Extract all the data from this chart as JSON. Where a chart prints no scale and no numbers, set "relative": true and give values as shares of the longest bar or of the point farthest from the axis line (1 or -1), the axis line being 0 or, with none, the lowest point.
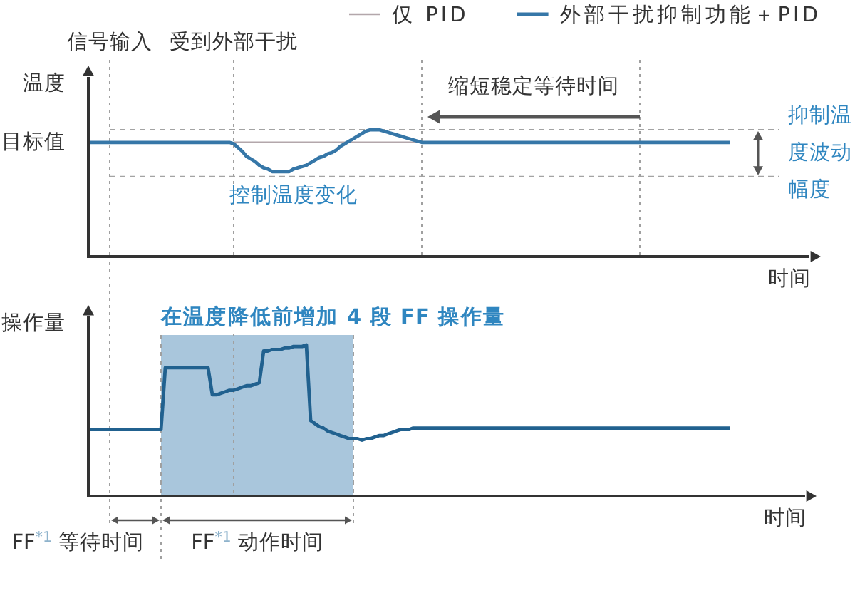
{
  "chart_data": [
    {
      "type": "line",
      "relative": true,
      "ylabel": "温度",
      "xlabel": "时间",
      "legend": "top right",
      "categories": [
        null,
        null,
        null,
        null,
        null,
        null,
        null,
        null,
        null,
        null,
        null,
        null,
        null,
        null,
        null,
        null,
        null,
        null,
        null,
        null,
        null,
        null,
        null,
        null,
        null,
        null,
        null,
        null,
        null,
        null,
        null,
        null,
        null,
        null,
        null,
        null,
        null,
        null,
        null,
        null,
        null,
        null,
        null,
        null,
        null,
        null,
        null,
        null,
        null,
        null,
        null,
        null,
        null,
        null,
        null,
        null,
        null,
        null,
        null,
        null,
        null,
        null,
        null,
        null,
        null,
        null,
        null,
        null,
        null,
        null,
        null,
        null,
        null,
        null,
        null,
        null,
        null,
        null,
        null,
        null,
        null,
        null,
        null,
        null,
        null,
        null,
        null,
        null,
        null,
        null,
        null,
        null,
        null,
        null,
        null,
        null,
        null,
        null,
        null,
        null,
        null,
        null,
        null,
        null,
        null,
        null,
        null,
        null,
        null,
        null,
        null,
        null,
        null,
        null,
        null,
        null,
        null,
        null,
        null,
        null,
        null,
        null,
        null,
        null,
        null,
        null,
        null,
        null,
        null,
        null,
        null,
        null,
        null,
        null,
        null,
        null,
        null,
        null,
        null,
        null,
        null,
        null,
        null,
        null,
        null,
        null,
        null,
        null,
        null,
        null,
        null
      ],
      "series": [
        {
          "name": "仅 PID",
          "color": "#b3a7ab",
          "values": [
            null,
            null,
            null,
            null,
            null,
            null,
            null,
            null,
            null,
            null,
            null,
            null,
            null,
            null,
            null,
            null,
            null,
            null,
            null,
            null,
            null,
            null,
            null,
            null,
            null,
            null,
            null,
            null,
            null,
            null,
            null,
            null,
            null,
            null,
            0.9,
            0.9,
            0.9,
            0.9,
            0.9,
            0.9,
            0.9,
            0.9,
            0.9,
            0.9,
            0.9,
            0.9,
            0.9,
            0.9,
            0.9,
            0.9,
            0.9,
            0.9,
            0.9,
            0.9,
            0.9,
            0.9,
            0.9,
            0.9,
            0.9,
            0.9,
            0.9,
            0.9,
            0.9,
            0.9,
            0.9,
            0.9,
            0.9,
            0.9,
            0.9,
            0.9,
            0.9,
            0.9,
            0.9,
            0.9,
            0.9,
            0.9,
            0.9,
            0.9,
            0.9,
            null,
            null,
            null,
            null,
            null,
            null,
            null,
            null,
            null,
            null,
            null,
            null,
            null,
            null,
            null,
            null,
            null,
            null,
            null,
            null,
            null,
            null,
            null,
            null,
            null,
            null,
            null,
            null,
            null,
            null,
            null,
            null,
            null,
            null,
            null,
            null,
            null,
            null,
            null,
            null,
            null,
            null,
            null,
            null,
            null,
            null,
            null,
            null,
            null,
            null,
            null,
            null,
            null,
            null,
            null,
            null,
            null,
            null,
            null,
            null,
            null,
            null,
            null,
            null,
            null,
            null,
            null,
            null,
            null,
            null,
            null,
            null
          ]
        },
        {
          "name": "外部干扰抑制功能＋PID",
          "color": "#3677a8",
          "values": [
            0.9,
            0.9,
            0.9,
            0.9,
            0.9,
            0.9,
            0.9,
            0.9,
            0.9,
            0.9,
            0.9,
            0.9,
            0.9,
            0.9,
            0.9,
            0.9,
            0.9,
            0.9,
            0.9,
            0.9,
            0.9,
            0.9,
            0.9,
            0.9,
            0.9,
            0.9,
            0.9,
            0.9,
            0.9,
            0.9,
            0.9,
            0.9,
            0.9,
            0.9,
            0.89,
            0.86,
            0.83,
            0.79,
            0.77,
            0.75,
            0.72,
            0.7,
            0.69,
            0.67,
            0.67,
            0.67,
            0.67,
            0.67,
            0.69,
            0.7,
            0.71,
            0.72,
            0.74,
            0.76,
            0.78,
            0.79,
            0.81,
            0.82,
            0.84,
            0.87,
            0.89,
            0.91,
            0.93,
            0.95,
            0.97,
            0.99,
            1,
            1,
            1,
            0.99,
            0.98,
            0.97,
            0.96,
            0.95,
            0.94,
            0.93,
            0.92,
            0.91,
            0.9,
            0.9,
            0.9,
            0.9,
            0.9,
            0.9,
            0.9,
            0.9,
            0.9,
            0.9,
            0.9,
            0.9,
            0.9,
            0.9,
            0.9,
            0.9,
            0.9,
            0.9,
            0.9,
            0.9,
            0.9,
            0.9,
            0.9,
            0.9,
            0.9,
            0.9,
            0.9,
            0.9,
            0.9,
            0.9,
            0.9,
            0.9,
            0.9,
            0.9,
            0.9,
            0.9,
            0.9,
            0.9,
            0.9,
            0.9,
            0.9,
            0.9,
            0.9,
            0.9,
            0.9,
            0.9,
            0.9,
            0.9,
            0.9,
            0.9,
            0.9,
            0.9,
            0.9,
            0.9,
            0.9,
            0.9,
            0.9,
            0.9,
            0.9,
            0.9,
            0.9,
            0.9,
            0.9,
            0.9,
            0.9,
            0.9,
            0.9,
            0.9,
            0.9,
            0.9,
            0.9,
            0.9,
            0.9
          ]
        }
      ],
      "ref_lines": [
        {
          "axis": "y",
          "value": 0.63,
          "color": "#a3a3a3",
          "line_style": "dashed"
        },
        {
          "axis": "y",
          "value": 1,
          "color": "#a3a3a3",
          "line_style": "dashed"
        }
      ],
      "annotations": [
        "信号输入",
        "受到外部干扰",
        "目标值",
        "控制温度变化",
        "缩短稳定等待时间",
        "抑制温度波动幅度"
      ]
    },
    {
      "type": "line",
      "relative": true,
      "ylabel": "操作量",
      "xlabel": "时间",
      "categories": [
        null,
        null,
        null,
        null,
        null,
        null,
        null,
        null,
        null,
        null,
        null,
        null,
        null,
        null,
        null,
        null,
        null,
        null,
        null,
        null,
        null,
        null,
        null,
        null,
        null,
        null,
        null,
        null,
        null,
        null,
        null,
        null,
        null,
        null,
        null,
        null,
        null,
        null,
        null,
        null,
        null,
        null,
        null,
        null,
        null,
        null,
        null,
        null,
        null,
        null,
        null,
        null,
        null,
        null,
        null,
        null,
        null,
        null,
        null,
        null,
        null,
        null,
        null,
        null,
        null,
        null,
        null,
        null,
        null,
        null,
        null,
        null,
        null,
        null,
        null,
        null,
        null,
        null,
        null,
        null,
        null,
        null,
        null,
        null,
        null,
        null,
        null,
        null,
        null,
        null,
        null,
        null,
        null,
        null,
        null,
        null,
        null,
        null,
        null,
        null,
        null,
        null,
        null,
        null,
        null,
        null,
        null,
        null,
        null,
        null,
        null,
        null,
        null,
        null,
        null,
        null,
        null,
        null,
        null,
        null,
        null,
        null,
        null,
        null,
        null,
        null,
        null,
        null,
        null,
        null,
        null,
        null,
        null,
        null,
        null,
        null,
        null,
        null,
        null,
        null,
        null,
        null,
        null,
        null,
        null,
        null,
        null,
        null,
        null,
        null,
        null
      ],
      "series": [
        {
          "color": "#21618f",
          "values": [
            0.44,
            0.44,
            0.44,
            0.44,
            0.44,
            0.44,
            0.44,
            0.44,
            0.44,
            0.44,
            0.44,
            0.44,
            0.44,
            0.44,
            0.44,
            0.44,
            0.44,
            0.44,
            0.85,
            0.85,
            0.85,
            0.85,
            0.85,
            0.85,
            0.85,
            0.85,
            0.85,
            0.85,
            0.85,
            0.67,
            0.67,
            0.68,
            0.69,
            0.7,
            0.7,
            0.71,
            0.72,
            0.73,
            0.73,
            0.74,
            0.75,
            0.96,
            0.96,
            0.97,
            0.97,
            0.97,
            0.98,
            0.98,
            0.99,
            0.99,
            0.99,
            1,
            0.5,
            0.48,
            0.46,
            0.45,
            0.43,
            0.42,
            0.41,
            0.4,
            0.39,
            0.38,
            0.38,
            0.38,
            0.37,
            0.38,
            0.38,
            0.39,
            0.4,
            0.4,
            0.41,
            0.42,
            0.43,
            0.44,
            0.44,
            0.44,
            0.45,
            0.45,
            0.45,
            0.45,
            0.45,
            0.45,
            0.45,
            0.45,
            0.45,
            0.45,
            0.45,
            0.45,
            0.45,
            0.45,
            0.45,
            0.45,
            0.45,
            0.45,
            0.45,
            0.45,
            0.45,
            0.45,
            0.45,
            0.45,
            0.45,
            0.45,
            0.45,
            0.45,
            0.45,
            0.45,
            0.45,
            0.45,
            0.45,
            0.45,
            0.45,
            0.45,
            0.45,
            0.45,
            0.45,
            0.45,
            0.45,
            0.45,
            0.45,
            0.45,
            0.45,
            0.45,
            0.45,
            0.45,
            0.45,
            0.45,
            0.45,
            0.45,
            0.45,
            0.45,
            0.45,
            0.45,
            0.45,
            0.45,
            0.45,
            0.45,
            0.45,
            0.45,
            0.45,
            0.45,
            0.45,
            0.45,
            0.45,
            0.45,
            0.45,
            0.45,
            0.45,
            0.45,
            0.45,
            0.45,
            0.45
          ]
        }
      ],
      "annotations": [
        "在温度降低前增加 4 段 FF 操作量",
        "FF$^{*1}$ 等待时间",
        "FF$^{*1}$ 动作时间"
      ]
    }
  ]
}
